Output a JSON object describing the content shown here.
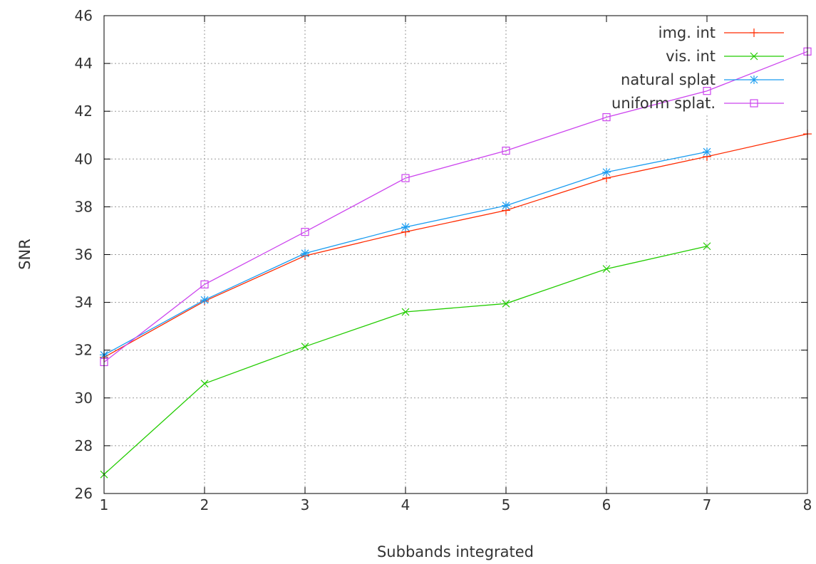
{
  "chart_data": {
    "type": "line",
    "title": "",
    "xlabel": "Subbands integrated",
    "ylabel": "SNR",
    "xlim": [
      1,
      8
    ],
    "ylim": [
      26,
      46
    ],
    "x_ticks": [
      1,
      2,
      3,
      4,
      5,
      6,
      7,
      8
    ],
    "y_ticks": [
      26,
      28,
      30,
      32,
      34,
      36,
      38,
      40,
      42,
      44,
      46
    ],
    "grid": true,
    "legend_position": "top-right",
    "series": [
      {
        "name": "img. int",
        "color": "#ff2a00",
        "marker": "plus",
        "x": [
          1,
          2,
          3,
          4,
          5,
          6,
          7,
          8
        ],
        "y": [
          31.7,
          34.05,
          35.95,
          36.95,
          37.85,
          39.2,
          40.1,
          41.05
        ]
      },
      {
        "name": "vis.  int",
        "color": "#22cc00",
        "marker": "cross",
        "x": [
          1,
          2,
          3,
          4,
          5,
          6,
          7
        ],
        "y": [
          26.8,
          30.6,
          32.15,
          33.6,
          33.95,
          35.4,
          36.35
        ]
      },
      {
        "name": "natural splat",
        "color": "#1a9cf0",
        "marker": "star",
        "x": [
          1,
          2,
          3,
          4,
          5,
          6,
          7
        ],
        "y": [
          31.8,
          34.1,
          36.05,
          37.15,
          38.05,
          39.45,
          40.3
        ]
      },
      {
        "name": "uniform splat.",
        "color": "#cc44ee",
        "marker": "square",
        "x": [
          1,
          2,
          3,
          4,
          5,
          6,
          7,
          8
        ],
        "y": [
          31.5,
          34.75,
          36.95,
          39.2,
          40.35,
          41.75,
          42.85,
          44.5
        ]
      }
    ]
  }
}
